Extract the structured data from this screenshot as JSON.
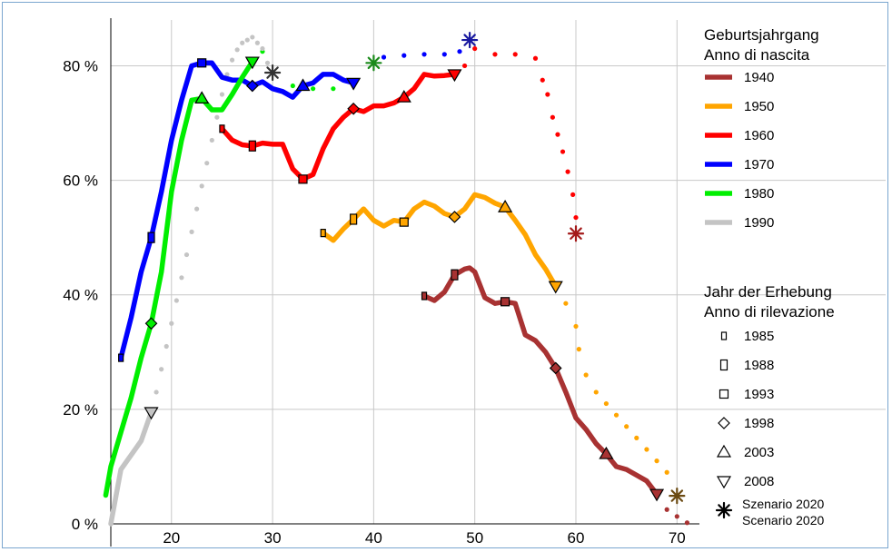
{
  "chart_data": {
    "type": "line",
    "title": "",
    "xlabel": "",
    "ylabel": "",
    "xlim": [
      14,
      71.5
    ],
    "ylim": [
      0,
      88
    ],
    "x_ticks": [
      20,
      30,
      40,
      50,
      60,
      70
    ],
    "y_ticks": [
      0,
      20,
      40,
      60,
      80
    ],
    "x_tick_labels": [
      "20",
      "30",
      "40",
      "50",
      "60",
      "70"
    ],
    "y_tick_labels": [
      "0 %",
      "20 %",
      "40 %",
      "60 %",
      "80 %"
    ],
    "grid": true,
    "legend_position": "right",
    "legend_cohort_title": [
      "Geburtsjahrgang",
      "Anno di nascita"
    ],
    "legend_survey_title": [
      "Jahr der Erhebung",
      "Anno di rilevazione"
    ],
    "series": [
      {
        "name": "1940",
        "color": "#a83232",
        "values": [
          [
            45,
            39.8
          ],
          [
            46,
            39
          ],
          [
            47,
            40.5
          ],
          [
            48,
            43.5
          ],
          [
            49,
            44.5
          ],
          [
            49.5,
            44.7
          ],
          [
            50,
            44
          ],
          [
            51,
            39.5
          ],
          [
            52,
            38.5
          ],
          [
            53,
            38.8
          ],
          [
            54,
            38.5
          ],
          [
            55,
            33
          ],
          [
            56,
            32
          ],
          [
            57,
            30
          ],
          [
            58,
            27.2
          ],
          [
            59,
            23
          ],
          [
            60,
            18.5
          ],
          [
            61,
            16.5
          ],
          [
            62,
            14
          ],
          [
            63,
            12.2
          ],
          [
            64,
            10
          ],
          [
            65,
            9.5
          ],
          [
            66,
            8.5
          ],
          [
            67,
            7.5
          ],
          [
            68,
            5.2
          ]
        ],
        "projection": [
          [
            69,
            2.5
          ],
          [
            70,
            1.3
          ],
          [
            71,
            0.2
          ]
        ]
      },
      {
        "name": "1950",
        "color": "#ffa500",
        "values": [
          [
            35,
            50.8
          ],
          [
            36,
            49.5
          ],
          [
            37,
            51.5
          ],
          [
            38,
            53.2
          ],
          [
            39,
            55
          ],
          [
            40,
            53
          ],
          [
            41,
            52
          ],
          [
            42,
            53
          ],
          [
            43,
            52.7
          ],
          [
            44,
            55
          ],
          [
            45,
            56.2
          ],
          [
            46,
            55.5
          ],
          [
            47,
            54.2
          ],
          [
            48,
            53.6
          ],
          [
            49,
            55
          ],
          [
            50,
            57.5
          ],
          [
            51,
            57
          ],
          [
            52,
            56
          ],
          [
            53,
            55.3
          ],
          [
            54,
            53
          ],
          [
            55,
            50.5
          ],
          [
            56,
            47
          ],
          [
            57,
            44.5
          ],
          [
            58,
            41.5
          ]
        ],
        "projection": [
          [
            59,
            38.5
          ],
          [
            60,
            34.5
          ],
          [
            60.3,
            30.5
          ],
          [
            61,
            26
          ],
          [
            62,
            23
          ],
          [
            63,
            21
          ],
          [
            64,
            19
          ],
          [
            65,
            17
          ],
          [
            66,
            15
          ],
          [
            67,
            13
          ],
          [
            68,
            11
          ],
          [
            69,
            9
          ],
          [
            70,
            4.9
          ]
        ]
      },
      {
        "name": "1960",
        "color": "#ff0000",
        "values": [
          [
            25,
            69
          ],
          [
            26,
            67
          ],
          [
            27,
            66.2
          ],
          [
            28,
            66
          ],
          [
            29,
            66.5
          ],
          [
            30,
            66.3
          ],
          [
            31,
            66.3
          ],
          [
            32,
            62
          ],
          [
            33,
            60.2
          ],
          [
            34,
            61
          ],
          [
            35,
            65.5
          ],
          [
            36,
            69
          ],
          [
            37,
            71
          ],
          [
            38,
            72.5
          ],
          [
            39,
            72
          ],
          [
            40,
            73
          ],
          [
            41,
            73
          ],
          [
            42,
            73.5
          ],
          [
            43,
            74.5
          ],
          [
            44,
            76
          ],
          [
            45,
            78.5
          ],
          [
            46,
            78.2
          ],
          [
            47,
            78.3
          ],
          [
            48,
            78.5
          ]
        ],
        "projection": [
          [
            49,
            80
          ],
          [
            50,
            83
          ],
          [
            52,
            82
          ],
          [
            54,
            82
          ],
          [
            56,
            81.3
          ],
          [
            56.7,
            77.5
          ],
          [
            57.2,
            75
          ],
          [
            57.7,
            71
          ],
          [
            58.2,
            68
          ],
          [
            58.7,
            65
          ],
          [
            59.2,
            61.5
          ],
          [
            59.7,
            57.5
          ],
          [
            60,
            53.5
          ],
          [
            60,
            50.7
          ]
        ]
      },
      {
        "name": "1970",
        "color": "#0000ff",
        "values": [
          [
            15,
            29
          ],
          [
            16,
            36
          ],
          [
            17,
            44
          ],
          [
            18,
            50
          ],
          [
            19,
            58
          ],
          [
            20,
            67
          ],
          [
            21,
            74
          ],
          [
            22,
            80
          ],
          [
            23,
            80.5
          ],
          [
            24,
            80.5
          ],
          [
            25,
            78
          ],
          [
            26,
            77.5
          ],
          [
            27,
            77.5
          ],
          [
            28,
            76.5
          ],
          [
            29,
            77.2
          ],
          [
            30,
            76
          ],
          [
            31,
            75.5
          ],
          [
            32,
            74.5
          ],
          [
            33,
            76.5
          ],
          [
            34,
            77
          ],
          [
            35,
            78.5
          ],
          [
            36,
            78.5
          ],
          [
            37,
            77.5
          ],
          [
            38,
            77
          ]
        ],
        "projection": [
          [
            41,
            81.5
          ],
          [
            43,
            81.8
          ],
          [
            45,
            82
          ],
          [
            47,
            82
          ],
          [
            48.5,
            82.5
          ],
          [
            49.5,
            84.5
          ]
        ]
      },
      {
        "name": "1980",
        "color": "#00ee00",
        "values": [
          [
            13.5,
            5
          ],
          [
            14,
            10
          ],
          [
            15,
            16
          ],
          [
            16,
            22
          ],
          [
            17,
            29
          ],
          [
            18,
            35
          ],
          [
            19,
            44
          ],
          [
            20,
            58
          ],
          [
            21,
            67
          ],
          [
            22,
            74
          ],
          [
            23,
            74.3
          ],
          [
            24,
            72.3
          ],
          [
            25,
            72.3
          ],
          [
            26,
            75
          ],
          [
            27,
            78
          ],
          [
            28,
            80.7
          ]
        ],
        "projection": [
          [
            29,
            82.5
          ],
          [
            32,
            76.5
          ],
          [
            34,
            76
          ],
          [
            36,
            76
          ],
          [
            38,
            77.2
          ],
          [
            40,
            80.5
          ]
        ]
      },
      {
        "name": "1990",
        "color": "#c4c4c4",
        "values": [
          [
            14,
            0
          ],
          [
            15,
            9.5
          ],
          [
            16,
            12
          ],
          [
            17,
            14.5
          ],
          [
            18,
            19.5
          ]
        ],
        "projection": [
          [
            18.5,
            23
          ],
          [
            19,
            27
          ],
          [
            19.5,
            31
          ],
          [
            20,
            35
          ],
          [
            20.5,
            39
          ],
          [
            21,
            43
          ],
          [
            21.5,
            47
          ],
          [
            22,
            51
          ],
          [
            22.5,
            55
          ],
          [
            23,
            59
          ],
          [
            23.5,
            63
          ],
          [
            24,
            67
          ],
          [
            24.5,
            71
          ],
          [
            25,
            75
          ],
          [
            25.5,
            78.5
          ],
          [
            26,
            81
          ],
          [
            26.5,
            82.8
          ],
          [
            27,
            84
          ],
          [
            27.5,
            84.5
          ],
          [
            28,
            85
          ],
          [
            28.5,
            84
          ],
          [
            29,
            83
          ],
          [
            29.5,
            80.5
          ],
          [
            30,
            78.8
          ]
        ]
      }
    ],
    "survey_years": [
      {
        "label": "1985",
        "marker": "rect-small",
        "points": [
          {
            "series": "1940",
            "x": 45,
            "y": 39.8
          },
          {
            "series": "1950",
            "x": 35,
            "y": 50.8
          },
          {
            "series": "1960",
            "x": 25,
            "y": 69
          },
          {
            "series": "1970",
            "x": 15,
            "y": 29
          }
        ]
      },
      {
        "label": "1988",
        "marker": "rect-tall",
        "points": [
          {
            "series": "1940",
            "x": 48,
            "y": 43.5
          },
          {
            "series": "1950",
            "x": 38,
            "y": 53.2
          },
          {
            "series": "1960",
            "x": 28,
            "y": 66
          },
          {
            "series": "1970",
            "x": 18,
            "y": 50
          }
        ]
      },
      {
        "label": "1993",
        "marker": "square",
        "points": [
          {
            "series": "1940",
            "x": 53,
            "y": 38.8
          },
          {
            "series": "1950",
            "x": 43,
            "y": 52.7
          },
          {
            "series": "1960",
            "x": 33,
            "y": 60.2
          },
          {
            "series": "1970",
            "x": 23,
            "y": 80.5
          }
        ]
      },
      {
        "label": "1998",
        "marker": "diamond",
        "points": [
          {
            "series": "1940",
            "x": 58,
            "y": 27.2
          },
          {
            "series": "1950",
            "x": 48,
            "y": 53.6
          },
          {
            "series": "1960",
            "x": 38,
            "y": 72.5
          },
          {
            "series": "1970",
            "x": 28,
            "y": 76.5
          },
          {
            "series": "1980",
            "x": 18,
            "y": 35
          }
        ]
      },
      {
        "label": "2003",
        "marker": "triangle-up",
        "points": [
          {
            "series": "1940",
            "x": 63,
            "y": 12.2
          },
          {
            "series": "1950",
            "x": 53,
            "y": 55.3
          },
          {
            "series": "1960",
            "x": 43,
            "y": 74.5
          },
          {
            "series": "1970",
            "x": 33,
            "y": 76.5
          },
          {
            "series": "1980",
            "x": 23,
            "y": 74.3
          }
        ]
      },
      {
        "label": "2008",
        "marker": "triangle-down",
        "points": [
          {
            "series": "1940",
            "x": 68,
            "y": 5.2
          },
          {
            "series": "1950",
            "x": 58,
            "y": 41.5
          },
          {
            "series": "1960",
            "x": 48,
            "y": 78.5
          },
          {
            "series": "1970",
            "x": 38,
            "y": 77
          },
          {
            "series": "1980",
            "x": 28,
            "y": 80.7
          },
          {
            "series": "1990",
            "x": 18,
            "y": 19.5
          }
        ]
      },
      {
        "label": "Szenario 2020",
        "label2": "Scenario 2020",
        "marker": "asterisk",
        "points": [
          {
            "series": "1950",
            "x": 70,
            "y": 4.9
          },
          {
            "series": "1960",
            "x": 60,
            "y": 50.7
          },
          {
            "series": "1970",
            "x": 49.5,
            "y": 84.5
          },
          {
            "series": "1980",
            "x": 40,
            "y": 80.5
          },
          {
            "series": "1990",
            "x": 30,
            "y": 78.8
          }
        ]
      }
    ]
  }
}
